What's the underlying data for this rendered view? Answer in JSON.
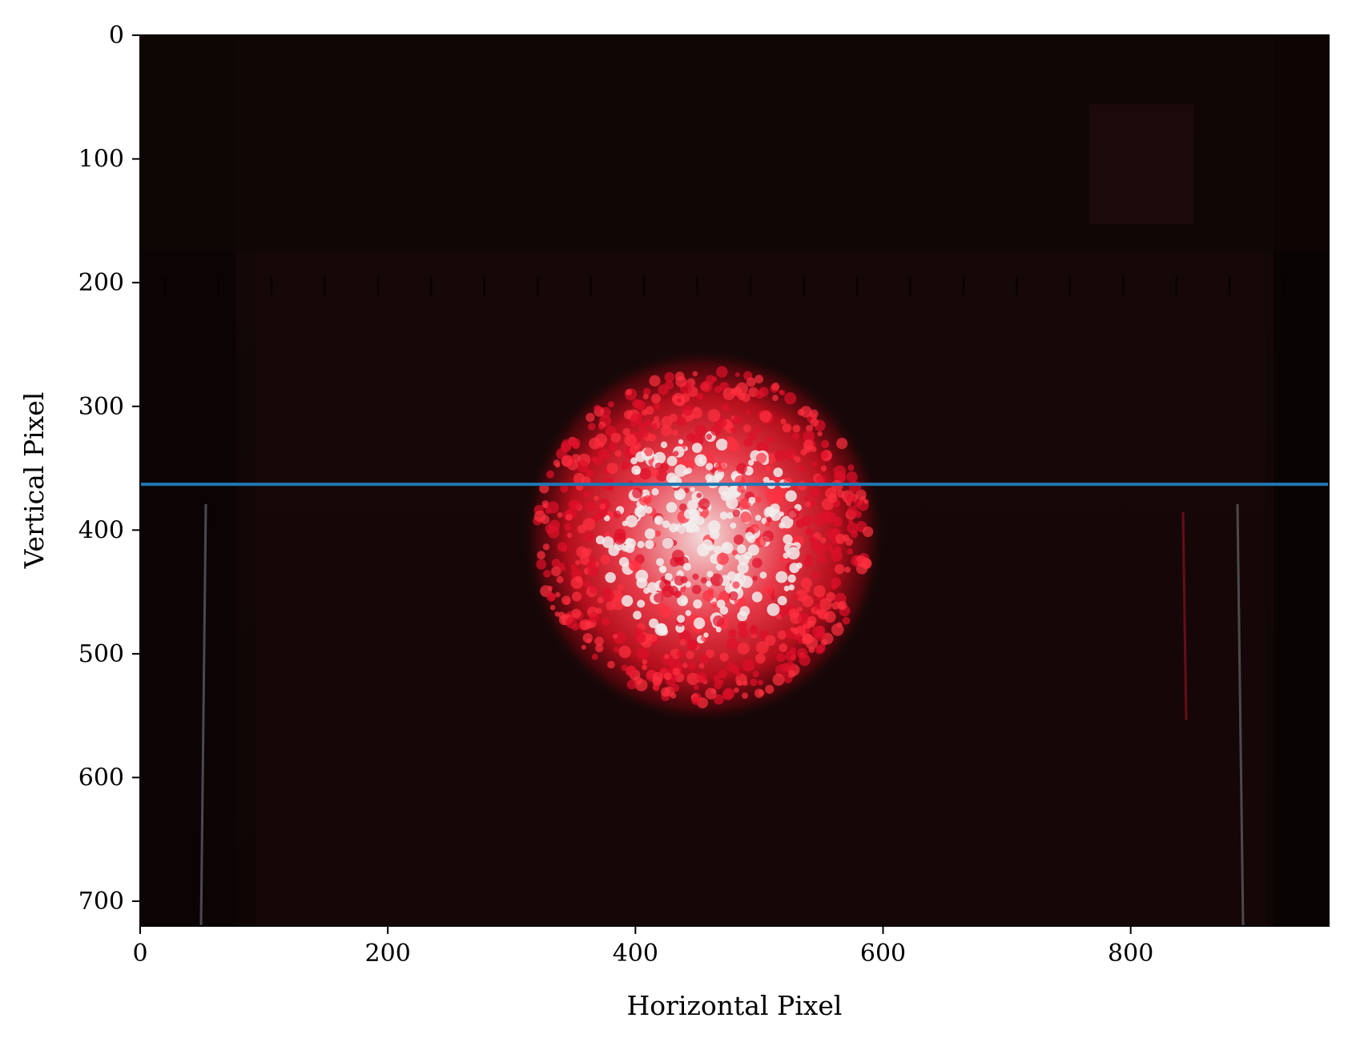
{
  "chart_data": {
    "type": "image",
    "title": "",
    "xlabel": "Horizontal Pixel",
    "ylabel": "Vertical Pixel",
    "xlim": [
      0,
      960
    ],
    "ylim": [
      720,
      0
    ],
    "y_axis_inverted": true,
    "xticks": [
      0,
      200,
      400,
      600,
      800
    ],
    "yticks": [
      0,
      100,
      200,
      300,
      400,
      500,
      600,
      700
    ],
    "xtick_labels": [
      "0",
      "200",
      "400",
      "600",
      "800"
    ],
    "ytick_labels": [
      "0",
      "100",
      "200",
      "300",
      "400",
      "500",
      "600",
      "700"
    ],
    "image_content": "dark camera frame with a bright red laser speckle spot",
    "spot": {
      "center_x": 455,
      "center_y": 405,
      "radius_x": 135,
      "radius_y": 135
    },
    "series": [
      {
        "type": "hline",
        "y": 363,
        "x": [
          0,
          960
        ],
        "color": "#1f77b4"
      }
    ],
    "grid": false,
    "legend": "none"
  },
  "colors": {
    "background": "#ffffff",
    "image_dark": "#120606",
    "spot_red": "#e0102a",
    "spot_white": "#f2ecec",
    "line": "#1f77b4"
  }
}
